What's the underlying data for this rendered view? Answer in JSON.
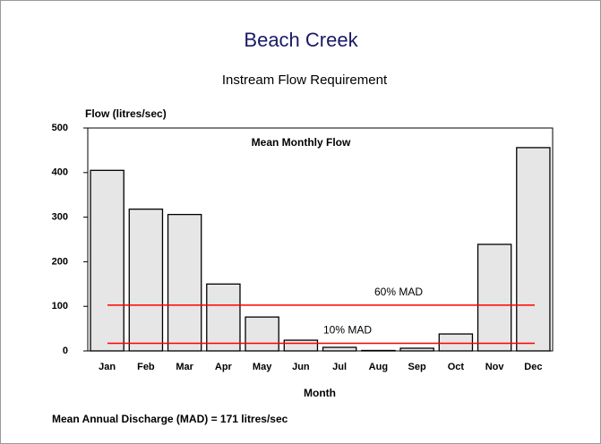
{
  "chart_data": {
    "type": "bar",
    "title": "Beach Creek",
    "subtitle": "Instream Flow Requirement",
    "y_label": "Flow (litres/sec)",
    "x_label": "Month",
    "series_label": "Mean Monthly Flow",
    "footnote": "Mean Annual Discharge (MAD) = 171 litres/sec",
    "categories": [
      "Jan",
      "Feb",
      "Mar",
      "Apr",
      "May",
      "Jun",
      "Jul",
      "Aug",
      "Sep",
      "Oct",
      "Nov",
      "Dec"
    ],
    "values": [
      405,
      318,
      306,
      150,
      76,
      24,
      8,
      1,
      6,
      38,
      239,
      456
    ],
    "color": "#e6e6e6",
    "ylim": [
      0,
      500
    ],
    "yticks": [
      0,
      100,
      200,
      300,
      400,
      500
    ],
    "reference_lines": [
      {
        "label": "60% MAD",
        "value": 102.6,
        "color": "#ff0000"
      },
      {
        "label": "10% MAD",
        "value": 17.1,
        "color": "#ff0000"
      }
    ]
  }
}
